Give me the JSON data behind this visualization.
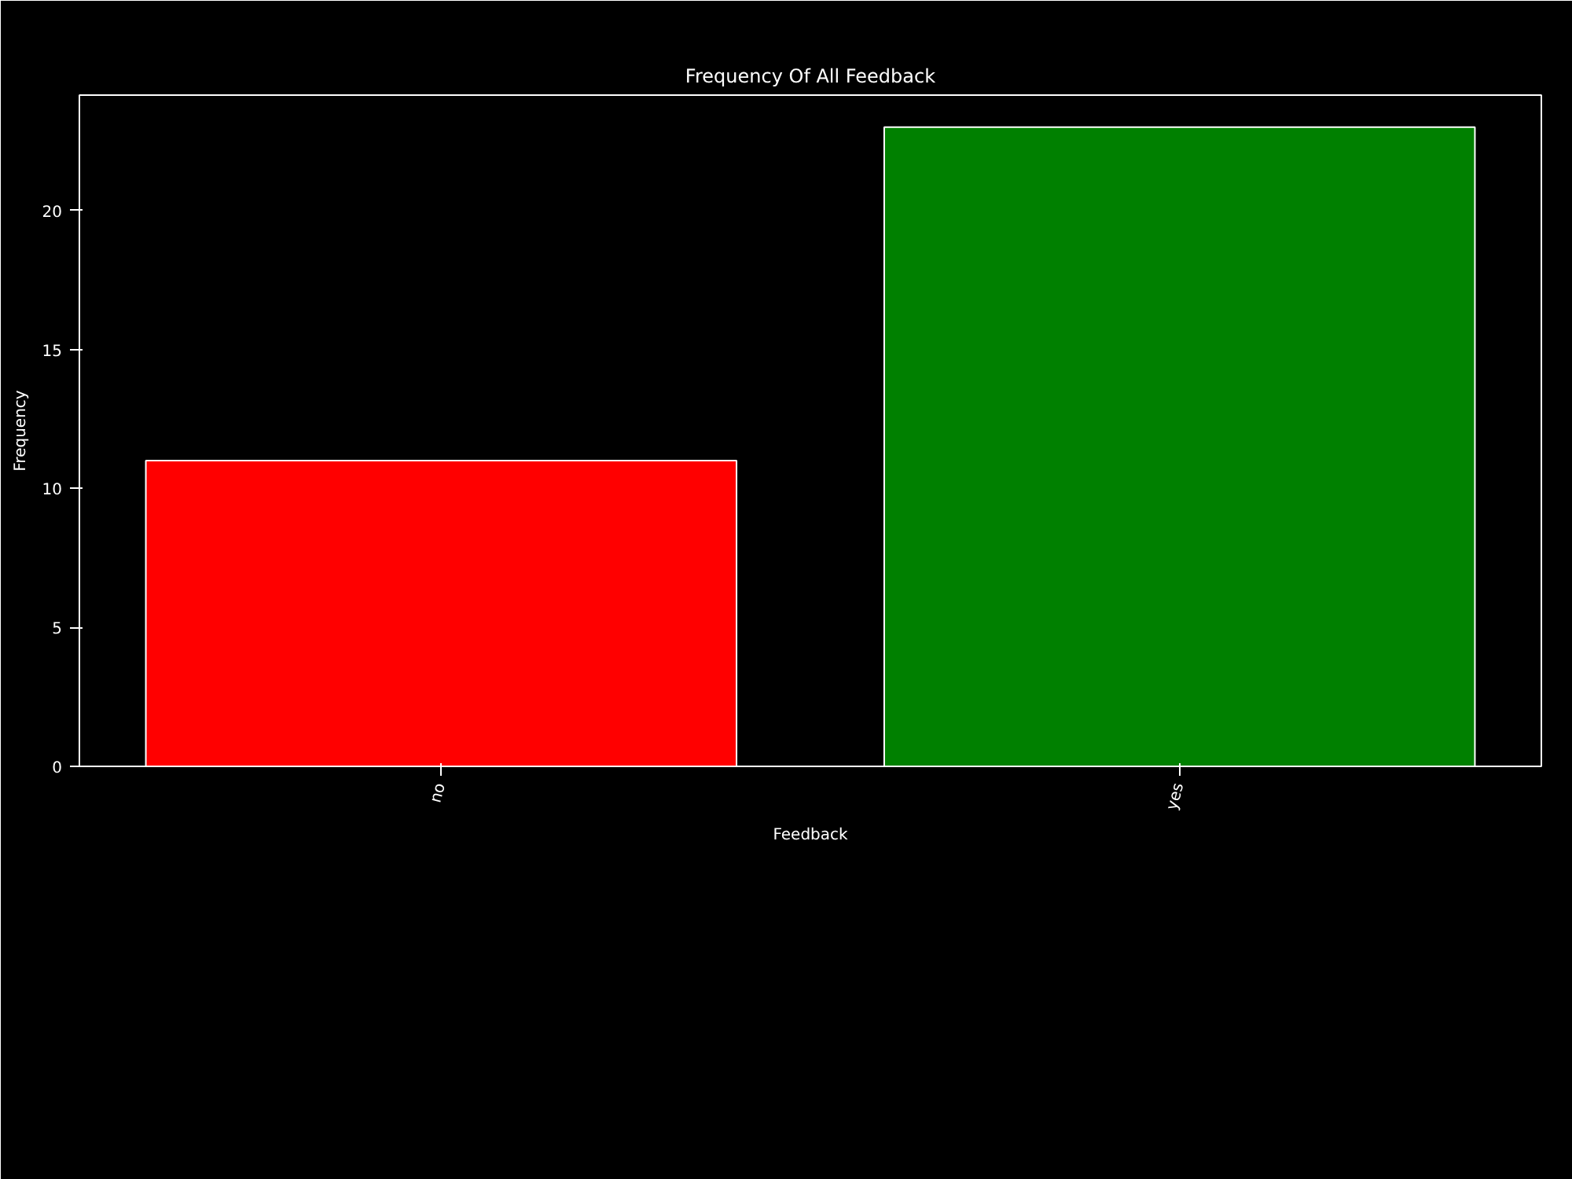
{
  "chart_data": {
    "type": "bar",
    "title": "Frequency Of All Feedback",
    "xlabel": "Feedback",
    "ylabel": "Frequency",
    "categories": [
      "no",
      "yes"
    ],
    "values": [
      11,
      23
    ],
    "colors": [
      "#ff0000",
      "#008000"
    ],
    "ylim": [
      0,
      24.15
    ],
    "yticks": [
      0,
      5,
      10,
      15,
      20
    ],
    "grid": false
  }
}
